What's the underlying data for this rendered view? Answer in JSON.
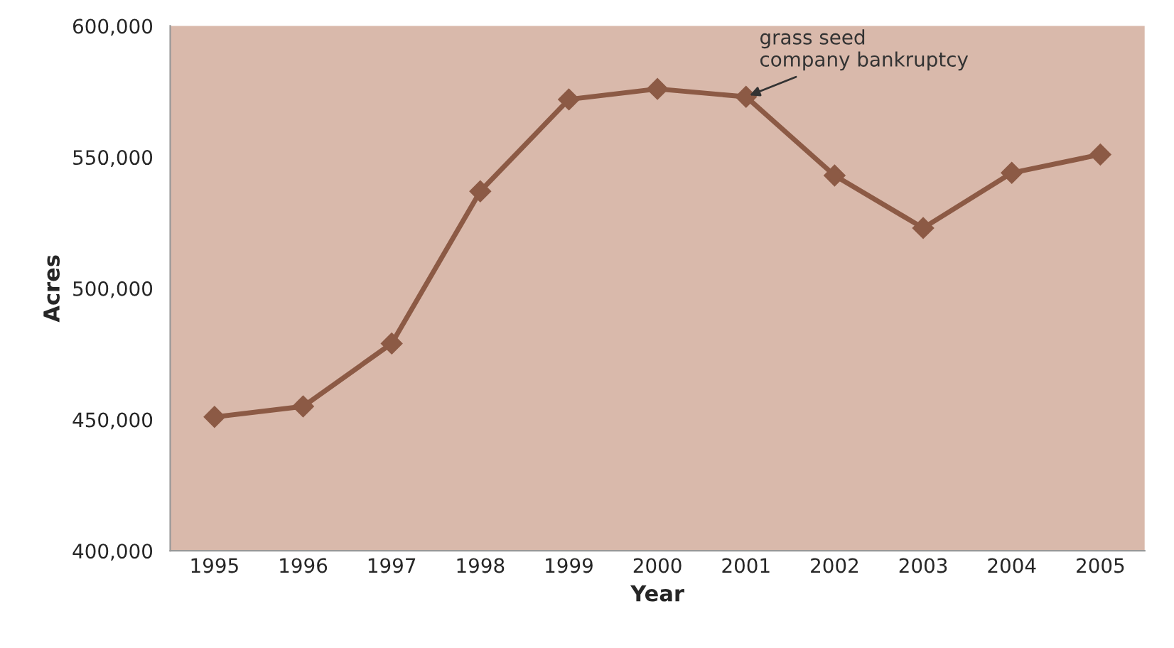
{
  "chart_data": {
    "type": "line",
    "xlabel": "Year",
    "ylabel": "Acres",
    "categories": [
      "1995",
      "1996",
      "1997",
      "1998",
      "1999",
      "2000",
      "2001",
      "2002",
      "2003",
      "2004",
      "2005"
    ],
    "series": [
      {
        "color": "#8c5a45",
        "values": [
          451000,
          455000,
          479000,
          537000,
          572000,
          576000,
          573000,
          543000,
          523000,
          544000,
          551000
        ]
      }
    ],
    "ylim": [
      400000,
      600000
    ],
    "yticks": [
      {
        "value": 400000,
        "label": "400,000"
      },
      {
        "value": 450000,
        "label": "450,000"
      },
      {
        "value": 500000,
        "label": "500,000"
      },
      {
        "value": 550000,
        "label": "550,000"
      },
      {
        "value": 600000,
        "label": "600,000"
      }
    ],
    "annotations": [
      {
        "text": "grass seed\ncompany bankruptcy",
        "x": "2001",
        "y": 573000
      }
    ],
    "marker": "diamond",
    "line_style": "solid",
    "grid": false,
    "legend": false
  }
}
